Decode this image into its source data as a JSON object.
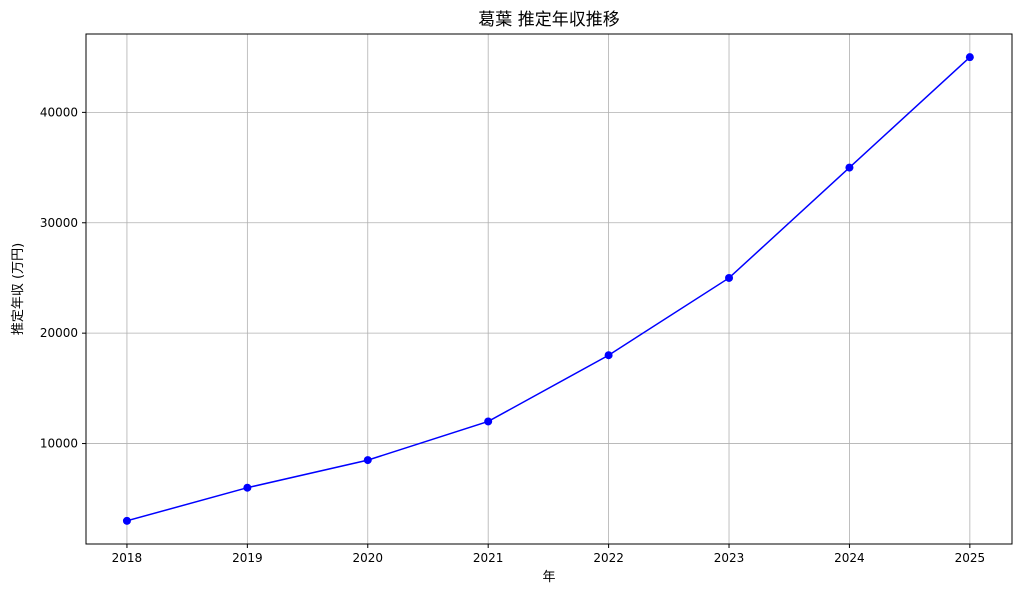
{
  "chart_data": {
    "type": "line",
    "title": "葛葉 推定年収推移",
    "xlabel": "年",
    "ylabel": "推定年収 (万円)",
    "x": [
      2018,
      2019,
      2020,
      2021,
      2022,
      2023,
      2024,
      2025
    ],
    "series": [
      {
        "values": [
          3000,
          6000,
          8500,
          12000,
          18000,
          25000,
          35000,
          45000
        ],
        "color": "#0000ff",
        "marker": "circle"
      }
    ],
    "xticks": [
      "2018",
      "2019",
      "2020",
      "2021",
      "2022",
      "2023",
      "2024",
      "2025"
    ],
    "yticks": [
      10000,
      20000,
      30000,
      40000
    ],
    "ytick_labels": [
      "10000",
      "20000",
      "30000",
      "40000"
    ],
    "xlim": [
      2017.66,
      2025.35
    ],
    "ylim": [
      900,
      47100
    ],
    "grid": true
  }
}
